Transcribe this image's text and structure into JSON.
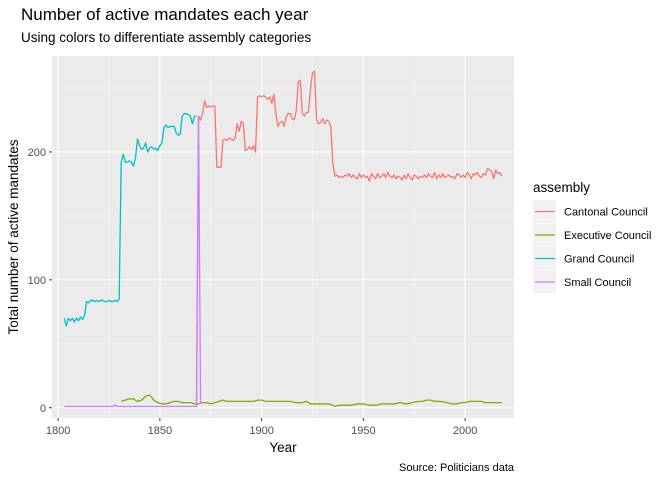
{
  "chart_data": {
    "type": "line",
    "title": "Number of active mandates each year",
    "subtitle": "Using colors to differentiate assembly categories",
    "xlabel": "Year",
    "ylabel": "Total number of active mandates",
    "caption": "Source: Politicians data",
    "xlim": [
      1797,
      2024
    ],
    "ylim": [
      -8,
      275
    ],
    "x_ticks": [
      1800,
      1850,
      1900,
      1950,
      2000
    ],
    "y_ticks": [
      0,
      100,
      200
    ],
    "grid": true,
    "legend": {
      "title": "assembly",
      "position": "right",
      "entries": [
        "Cantonal Council",
        "Executive Council",
        "Grand Council",
        "Small Council"
      ]
    },
    "series": [
      {
        "name": "Cantonal Council",
        "color": "#F8766D",
        "points": [
          [
            1868,
            2
          ],
          [
            1869,
            228
          ],
          [
            1870,
            225
          ],
          [
            1871,
            230
          ],
          [
            1872,
            240
          ],
          [
            1873,
            235
          ],
          [
            1874,
            236
          ],
          [
            1875,
            235
          ],
          [
            1876,
            236
          ],
          [
            1877,
            236
          ],
          [
            1878,
            188
          ],
          [
            1879,
            188
          ],
          [
            1880,
            188
          ],
          [
            1881,
            209
          ],
          [
            1882,
            210
          ],
          [
            1883,
            209
          ],
          [
            1884,
            211
          ],
          [
            1885,
            210
          ],
          [
            1886,
            209
          ],
          [
            1887,
            211
          ],
          [
            1888,
            222
          ],
          [
            1889,
            216
          ],
          [
            1890,
            224
          ],
          [
            1891,
            222
          ],
          [
            1892,
            201
          ],
          [
            1893,
            202
          ],
          [
            1894,
            204
          ],
          [
            1895,
            202
          ],
          [
            1896,
            205
          ],
          [
            1897,
            200
          ],
          [
            1898,
            243
          ],
          [
            1899,
            244
          ],
          [
            1900,
            243
          ],
          [
            1901,
            244
          ],
          [
            1902,
            243
          ],
          [
            1903,
            241
          ],
          [
            1904,
            243
          ],
          [
            1905,
            238
          ],
          [
            1906,
            245
          ],
          [
            1907,
            230
          ],
          [
            1908,
            220
          ],
          [
            1909,
            223
          ],
          [
            1910,
            224
          ],
          [
            1911,
            220
          ],
          [
            1912,
            227
          ],
          [
            1913,
            230
          ],
          [
            1914,
            230
          ],
          [
            1915,
            226
          ],
          [
            1916,
            225
          ],
          [
            1917,
            232
          ],
          [
            1918,
            255
          ],
          [
            1919,
            256
          ],
          [
            1920,
            230
          ],
          [
            1921,
            228
          ],
          [
            1922,
            231
          ],
          [
            1923,
            231
          ],
          [
            1924,
            249
          ],
          [
            1925,
            262
          ],
          [
            1926,
            263
          ],
          [
            1927,
            225
          ],
          [
            1928,
            222
          ],
          [
            1929,
            223
          ],
          [
            1930,
            226
          ],
          [
            1931,
            222
          ],
          [
            1932,
            225
          ],
          [
            1933,
            224
          ],
          [
            1934,
            220
          ],
          [
            1935,
            191
          ],
          [
            1936,
            181
          ],
          [
            1937,
            182
          ],
          [
            1938,
            180
          ],
          [
            1939,
            181
          ],
          [
            1940,
            180
          ],
          [
            1941,
            182
          ],
          [
            1942,
            181
          ],
          [
            1943,
            183
          ],
          [
            1944,
            180
          ],
          [
            1945,
            182
          ],
          [
            1946,
            180
          ],
          [
            1947,
            179
          ],
          [
            1948,
            183
          ],
          [
            1949,
            180
          ],
          [
            1950,
            182
          ],
          [
            1951,
            180
          ],
          [
            1952,
            181
          ],
          [
            1953,
            177
          ],
          [
            1954,
            183
          ],
          [
            1955,
            181
          ],
          [
            1956,
            179
          ],
          [
            1957,
            183
          ],
          [
            1958,
            180
          ],
          [
            1959,
            181
          ],
          [
            1960,
            183
          ],
          [
            1961,
            180
          ],
          [
            1962,
            184
          ],
          [
            1963,
            181
          ],
          [
            1964,
            180
          ],
          [
            1965,
            182
          ],
          [
            1966,
            179
          ],
          [
            1967,
            181
          ],
          [
            1968,
            180
          ],
          [
            1969,
            178
          ],
          [
            1970,
            182
          ],
          [
            1971,
            179
          ],
          [
            1972,
            183
          ],
          [
            1973,
            180
          ],
          [
            1974,
            178
          ],
          [
            1975,
            182
          ],
          [
            1976,
            181
          ],
          [
            1977,
            179
          ],
          [
            1978,
            181
          ],
          [
            1979,
            180
          ],
          [
            1980,
            182
          ],
          [
            1981,
            180
          ],
          [
            1982,
            183
          ],
          [
            1983,
            181
          ],
          [
            1984,
            180
          ],
          [
            1985,
            184
          ],
          [
            1986,
            179
          ],
          [
            1987,
            182
          ],
          [
            1988,
            180
          ],
          [
            1989,
            183
          ],
          [
            1990,
            180
          ],
          [
            1991,
            181
          ],
          [
            1992,
            182
          ],
          [
            1993,
            180
          ],
          [
            1994,
            181
          ],
          [
            1995,
            179
          ],
          [
            1996,
            183
          ],
          [
            1997,
            182
          ],
          [
            1998,
            180
          ],
          [
            1999,
            182
          ],
          [
            2000,
            180
          ],
          [
            2001,
            184
          ],
          [
            2002,
            182
          ],
          [
            2003,
            179
          ],
          [
            2004,
            183
          ],
          [
            2005,
            182
          ],
          [
            2006,
            184
          ],
          [
            2007,
            181
          ],
          [
            2008,
            180
          ],
          [
            2009,
            183
          ],
          [
            2010,
            182
          ],
          [
            2011,
            187
          ],
          [
            2012,
            186
          ],
          [
            2013,
            185
          ],
          [
            2014,
            179
          ],
          [
            2015,
            186
          ],
          [
            2016,
            183
          ],
          [
            2017,
            184
          ],
          [
            2018,
            181
          ]
        ]
      },
      {
        "name": "Executive Council",
        "color": "#7CAE00",
        "points": [
          [
            1831,
            5
          ],
          [
            1833,
            6
          ],
          [
            1835,
            7
          ],
          [
            1837,
            7
          ],
          [
            1839,
            5
          ],
          [
            1841,
            6
          ],
          [
            1843,
            9
          ],
          [
            1845,
            10
          ],
          [
            1846,
            8
          ],
          [
            1847,
            6
          ],
          [
            1849,
            4
          ],
          [
            1851,
            3
          ],
          [
            1853,
            3
          ],
          [
            1855,
            4
          ],
          [
            1857,
            5
          ],
          [
            1859,
            5
          ],
          [
            1861,
            4
          ],
          [
            1863,
            4
          ],
          [
            1865,
            4
          ],
          [
            1867,
            3
          ],
          [
            1869,
            3
          ],
          [
            1871,
            4
          ],
          [
            1873,
            4
          ],
          [
            1875,
            3
          ],
          [
            1877,
            4
          ],
          [
            1879,
            5
          ],
          [
            1881,
            6
          ],
          [
            1883,
            5
          ],
          [
            1885,
            5
          ],
          [
            1887,
            5
          ],
          [
            1890,
            5
          ],
          [
            1893,
            5
          ],
          [
            1896,
            5
          ],
          [
            1898,
            6
          ],
          [
            1900,
            6
          ],
          [
            1902,
            5
          ],
          [
            1905,
            5
          ],
          [
            1908,
            5
          ],
          [
            1911,
            5
          ],
          [
            1914,
            5
          ],
          [
            1917,
            4
          ],
          [
            1920,
            4
          ],
          [
            1922,
            5
          ],
          [
            1924,
            3
          ],
          [
            1927,
            3
          ],
          [
            1930,
            3
          ],
          [
            1933,
            3
          ],
          [
            1935,
            2
          ],
          [
            1936,
            1
          ],
          [
            1938,
            2
          ],
          [
            1941,
            2
          ],
          [
            1944,
            2
          ],
          [
            1947,
            3
          ],
          [
            1950,
            3
          ],
          [
            1953,
            2
          ],
          [
            1956,
            2
          ],
          [
            1959,
            3
          ],
          [
            1962,
            3
          ],
          [
            1965,
            3
          ],
          [
            1968,
            4
          ],
          [
            1971,
            3
          ],
          [
            1974,
            4
          ],
          [
            1977,
            5
          ],
          [
            1979,
            5
          ],
          [
            1981,
            6
          ],
          [
            1983,
            6
          ],
          [
            1985,
            5
          ],
          [
            1988,
            5
          ],
          [
            1991,
            4
          ],
          [
            1994,
            3
          ],
          [
            1996,
            3
          ],
          [
            1998,
            4
          ],
          [
            2000,
            4
          ],
          [
            2002,
            5
          ],
          [
            2004,
            5
          ],
          [
            2006,
            5
          ],
          [
            2008,
            5
          ],
          [
            2010,
            4
          ],
          [
            2012,
            4
          ],
          [
            2014,
            4
          ],
          [
            2016,
            4
          ],
          [
            2018,
            4
          ]
        ]
      },
      {
        "name": "Grand Council",
        "color": "#00BFC4",
        "points": [
          [
            1803,
            70
          ],
          [
            1804,
            64
          ],
          [
            1805,
            70
          ],
          [
            1806,
            68
          ],
          [
            1807,
            70
          ],
          [
            1808,
            67
          ],
          [
            1809,
            70
          ],
          [
            1810,
            68
          ],
          [
            1811,
            71
          ],
          [
            1812,
            69
          ],
          [
            1813,
            72
          ],
          [
            1814,
            83
          ],
          [
            1815,
            82
          ],
          [
            1816,
            84
          ],
          [
            1817,
            84
          ],
          [
            1818,
            83
          ],
          [
            1819,
            84
          ],
          [
            1820,
            83
          ],
          [
            1821,
            84
          ],
          [
            1822,
            84
          ],
          [
            1823,
            83
          ],
          [
            1824,
            83
          ],
          [
            1825,
            84
          ],
          [
            1826,
            83
          ],
          [
            1827,
            83
          ],
          [
            1828,
            84
          ],
          [
            1829,
            83
          ],
          [
            1830,
            85
          ],
          [
            1831,
            192
          ],
          [
            1832,
            198
          ],
          [
            1833,
            192
          ],
          [
            1834,
            192
          ],
          [
            1835,
            193
          ],
          [
            1836,
            192
          ],
          [
            1837,
            189
          ],
          [
            1838,
            195
          ],
          [
            1839,
            210
          ],
          [
            1840,
            205
          ],
          [
            1841,
            202
          ],
          [
            1842,
            203
          ],
          [
            1843,
            207
          ],
          [
            1844,
            200
          ],
          [
            1845,
            203
          ],
          [
            1846,
            204
          ],
          [
            1847,
            202
          ],
          [
            1848,
            203
          ],
          [
            1849,
            201
          ],
          [
            1850,
            205
          ],
          [
            1851,
            207
          ],
          [
            1852,
            219
          ],
          [
            1853,
            221
          ],
          [
            1854,
            219
          ],
          [
            1855,
            220
          ],
          [
            1856,
            220
          ],
          [
            1857,
            220
          ],
          [
            1858,
            215
          ],
          [
            1859,
            213
          ],
          [
            1860,
            214
          ],
          [
            1861,
            228
          ],
          [
            1862,
            230
          ],
          [
            1863,
            230
          ],
          [
            1864,
            229
          ],
          [
            1865,
            228
          ],
          [
            1866,
            222
          ],
          [
            1867,
            228
          ],
          [
            1868,
            228
          ]
        ]
      },
      {
        "name": "Small Council",
        "color": "#C77CFF",
        "points": [
          [
            1803,
            1
          ],
          [
            1810,
            1
          ],
          [
            1820,
            1
          ],
          [
            1827,
            1
          ],
          [
            1828,
            2
          ],
          [
            1829,
            1
          ],
          [
            1840,
            1
          ],
          [
            1850,
            1
          ],
          [
            1860,
            1
          ],
          [
            1867,
            1
          ],
          [
            1868,
            1
          ],
          [
            1869,
            228
          ],
          [
            1870,
            3
          ]
        ]
      }
    ]
  }
}
